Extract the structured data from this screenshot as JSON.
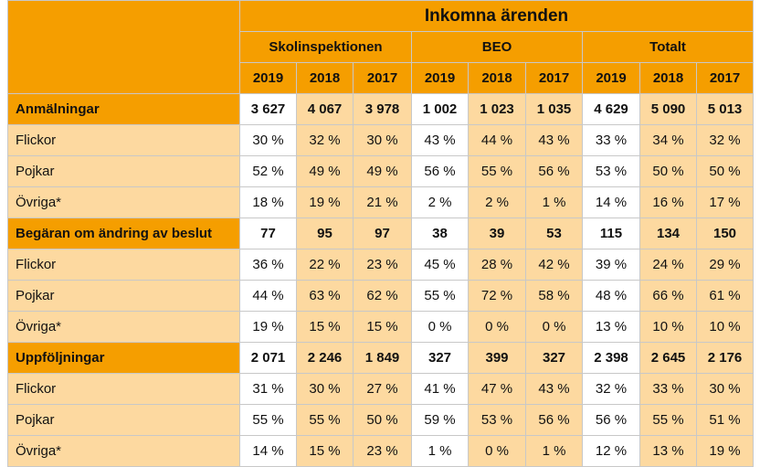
{
  "title": "Inkomna ärenden",
  "groups": [
    "Skolinspektionen",
    "BEO",
    "Totalt"
  ],
  "years": [
    "2019",
    "2018",
    "2017"
  ],
  "colors": {
    "header": "#f59e00",
    "cell": "#fdd9a0",
    "highlight": "#ffffff"
  },
  "sections": [
    {
      "label": "Anmälningar",
      "values": [
        "3 627",
        "4 067",
        "3 978",
        "1 002",
        "1 023",
        "1 035",
        "4 629",
        "5 090",
        "5 013"
      ],
      "rows": [
        {
          "label": "Flickor",
          "values": [
            "30 %",
            "32 %",
            "30 %",
            "43 %",
            "44 %",
            "43 %",
            "33 %",
            "34 %",
            "32 %"
          ]
        },
        {
          "label": "Pojkar",
          "values": [
            "52 %",
            "49 %",
            "49 %",
            "56 %",
            "55 %",
            "56 %",
            "53 %",
            "50 %",
            "50 %"
          ]
        },
        {
          "label": "Övriga*",
          "values": [
            "18 %",
            "19 %",
            "21 %",
            "2 %",
            "2 %",
            "1 %",
            "14 %",
            "16 %",
            "17 %"
          ]
        }
      ]
    },
    {
      "label": "Begäran om ändring av beslut",
      "values": [
        "77",
        "95",
        "97",
        "38",
        "39",
        "53",
        "115",
        "134",
        "150"
      ],
      "rows": [
        {
          "label": "Flickor",
          "values": [
            "36 %",
            "22 %",
            "23 %",
            "45 %",
            "28 %",
            "42 %",
            "39 %",
            "24 %",
            "29 %"
          ]
        },
        {
          "label": "Pojkar",
          "values": [
            "44 %",
            "63 %",
            "62 %",
            "55 %",
            "72 %",
            "58 %",
            "48 %",
            "66 %",
            "61 %"
          ]
        },
        {
          "label": "Övriga*",
          "values": [
            "19 %",
            "15 %",
            "15 %",
            "0 %",
            "0 %",
            "0 %",
            "13 %",
            "10 %",
            "10 %"
          ]
        }
      ]
    },
    {
      "label": "Uppföljningar",
      "values": [
        "2 071",
        "2 246",
        "1 849",
        "327",
        "399",
        "327",
        "2 398",
        "2 645",
        "2 176"
      ],
      "rows": [
        {
          "label": "Flickor",
          "values": [
            "31 %",
            "30 %",
            "27 %",
            "41 %",
            "47 %",
            "43 %",
            "32 %",
            "33 %",
            "30 %"
          ]
        },
        {
          "label": "Pojkar",
          "values": [
            "55 %",
            "55 %",
            "50 %",
            "59 %",
            "53 %",
            "56 %",
            "56 %",
            "55 %",
            "51 %"
          ]
        },
        {
          "label": "Övriga*",
          "values": [
            "14 %",
            "15 %",
            "23 %",
            "1 %",
            "0 %",
            "1 %",
            "12 %",
            "13 %",
            "19 %"
          ]
        }
      ]
    }
  ]
}
